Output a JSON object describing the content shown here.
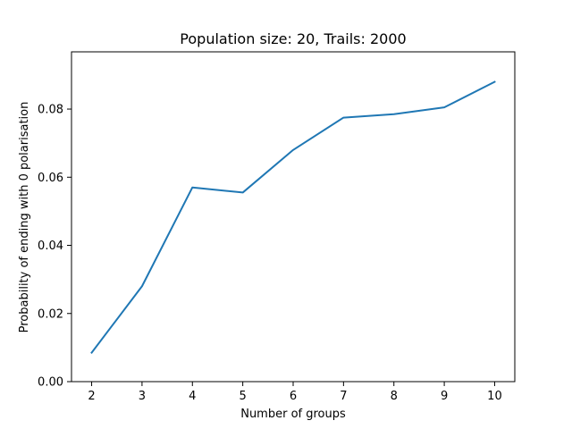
{
  "chart_data": {
    "type": "line",
    "title": "Population size: 20, Trails: 2000",
    "xlabel": "Number of groups",
    "ylabel": "Probability of ending with 0 polarisation",
    "x": [
      2,
      3,
      4,
      5,
      6,
      7,
      8,
      9,
      10
    ],
    "series": [
      {
        "values": [
          0.0085,
          0.028,
          0.057,
          0.0555,
          0.068,
          0.0775,
          0.0785,
          0.0805,
          0.088
        ],
        "color": "#1f77b4"
      }
    ],
    "xlim": [
      1.6,
      10.4
    ],
    "ylim": [
      0.0,
      0.0968
    ],
    "xticks": [
      2,
      3,
      4,
      5,
      6,
      7,
      8,
      9,
      10
    ],
    "xtick_labels": [
      "2",
      "3",
      "4",
      "5",
      "6",
      "7",
      "8",
      "9",
      "10"
    ],
    "yticks": [
      0.0,
      0.02,
      0.04,
      0.06,
      0.08
    ],
    "ytick_labels": [
      "0.00",
      "0.02",
      "0.04",
      "0.06",
      "0.08"
    ],
    "grid": false,
    "legend": "none"
  }
}
